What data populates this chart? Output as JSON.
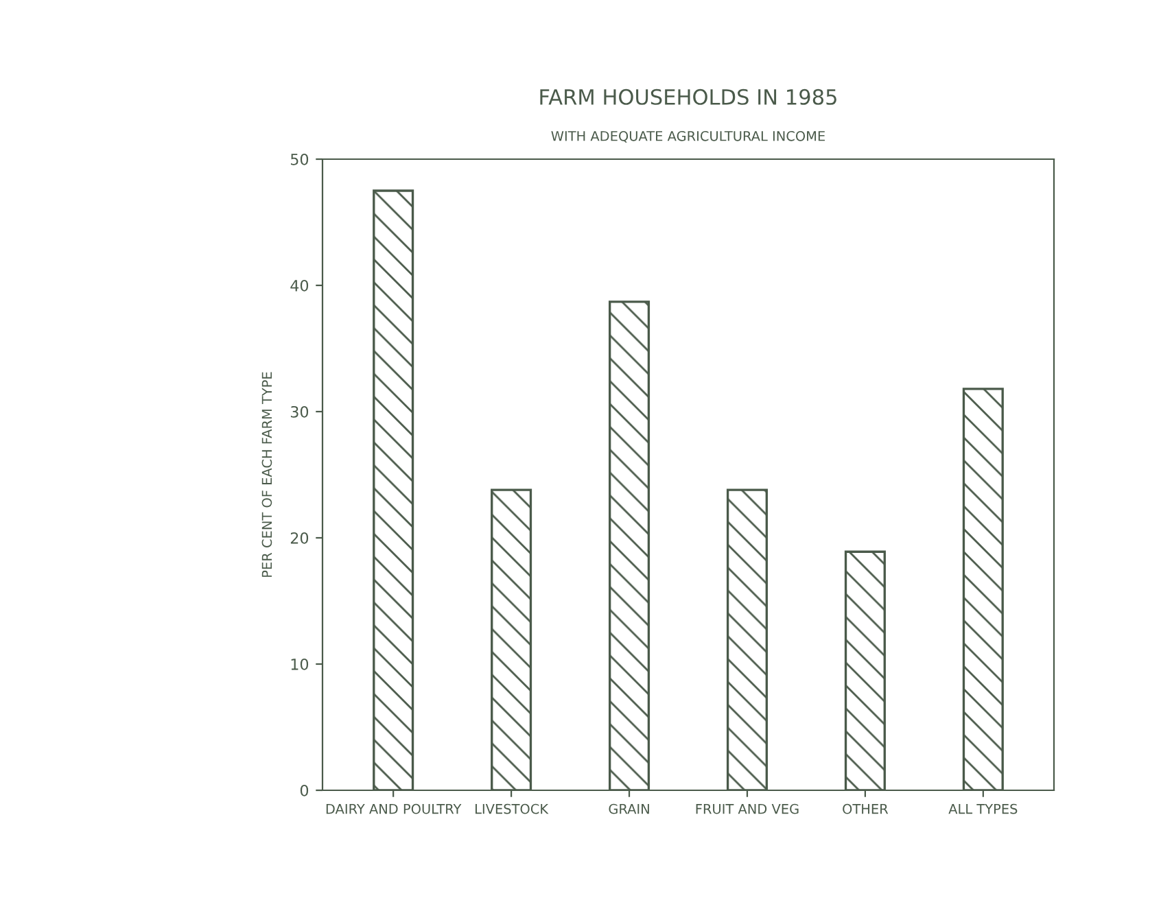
{
  "chart_data": {
    "type": "bar",
    "title": "FARM HOUSEHOLDS IN 1985",
    "subtitle": "WITH ADEQUATE AGRICULTURAL INCOME",
    "ylabel": "PER CENT OF EACH FARM TYPE",
    "categories": [
      "DAIRY AND POULTRY",
      "LIVESTOCK",
      "GRAIN",
      "FRUIT AND VEG",
      "OTHER",
      "ALL TYPES"
    ],
    "values": [
      47.5,
      23.8,
      38.7,
      23.8,
      18.9,
      31.8
    ],
    "color": "#4a5a4a",
    "ylim": [
      0,
      50
    ],
    "yticks": [
      0,
      10,
      20,
      30,
      40,
      50
    ],
    "grid": false
  }
}
